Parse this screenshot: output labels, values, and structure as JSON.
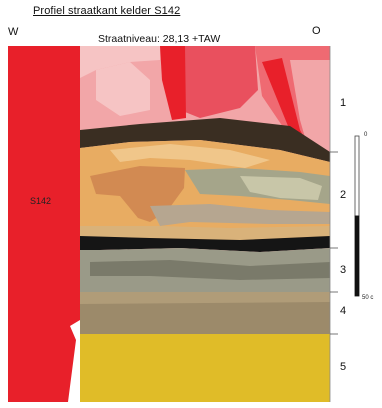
{
  "title": "Profiel straatkant kelder S142",
  "orientation": {
    "west": "W",
    "east": "O"
  },
  "street_level": "Straatniveau: 28,13 +TAW",
  "wall_label": "S142",
  "layers": [
    {
      "number": "1"
    },
    {
      "number": "2"
    },
    {
      "number": "3"
    },
    {
      "number": "4"
    },
    {
      "number": "5"
    }
  ],
  "scale": {
    "top_label": "0",
    "bottom_label": "50 c"
  },
  "colors": {
    "wall": "#e8202a",
    "pink": "#f0a8a8",
    "orange": "#e8ac62",
    "gray": "#9a9a88",
    "dark_gray": "#6a6a5c",
    "black": "#151515",
    "yellow": "#e0bc28",
    "brown": "#9c8a6a"
  }
}
